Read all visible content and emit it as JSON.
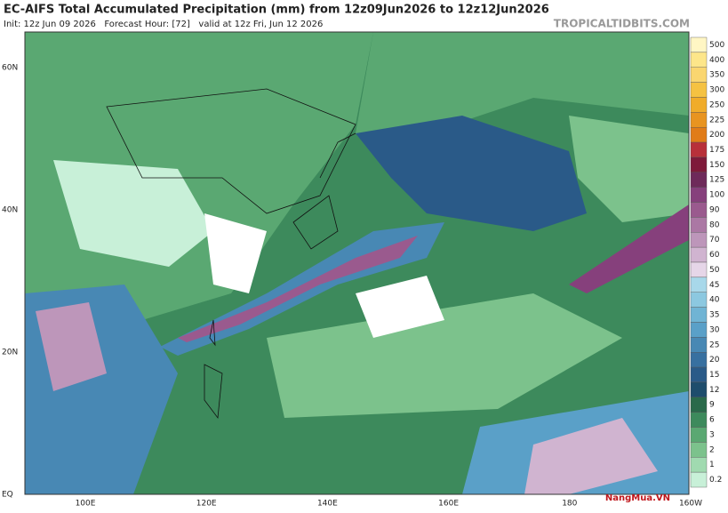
{
  "header": {
    "title": "EC-AIFS Total Accumulated Precipitation (mm) from 12z09Jun2026 to 12z12Jun2026",
    "subtitle": "Init: 12z Jun 09 2026   Forecast Hour: [72]   valid at 12z Fri, Jun 12 2026",
    "site": "TROPICALTIDBITS.COM"
  },
  "map": {
    "lat_labels": [
      "60N",
      "40N",
      "20N",
      "EQ"
    ],
    "lon_labels": [
      "100E",
      "120E",
      "140E",
      "160E",
      "180",
      "160W"
    ]
  },
  "colorbar": {
    "levels": [
      500,
      400,
      350,
      300,
      250,
      225,
      200,
      175,
      150,
      125,
      100,
      90,
      80,
      70,
      60,
      50,
      45,
      40,
      35,
      30,
      25,
      20,
      15,
      12,
      9,
      6,
      3,
      2,
      1,
      0.2
    ],
    "colors": [
      "#fff6c4",
      "#fde68a",
      "#fad670",
      "#f5c242",
      "#f0ac2a",
      "#e89420",
      "#e07c18",
      "#b8303a",
      "#7e1a3a",
      "#6e2a5a",
      "#86407c",
      "#9a5a8e",
      "#ab78a4",
      "#bd96ba",
      "#d0b4d0",
      "#e6d6e8",
      "#a8d8ea",
      "#8cc8e0",
      "#70b4d4",
      "#5aa0c8",
      "#4888b4",
      "#3870a0",
      "#2a5a88",
      "#1e4d6c",
      "#2a6a4a",
      "#3d8a5c",
      "#5aa872",
      "#7cc28c",
      "#a0dab0",
      "#c8f0d8"
    ]
  },
  "watermark": "NangMua.VN"
}
